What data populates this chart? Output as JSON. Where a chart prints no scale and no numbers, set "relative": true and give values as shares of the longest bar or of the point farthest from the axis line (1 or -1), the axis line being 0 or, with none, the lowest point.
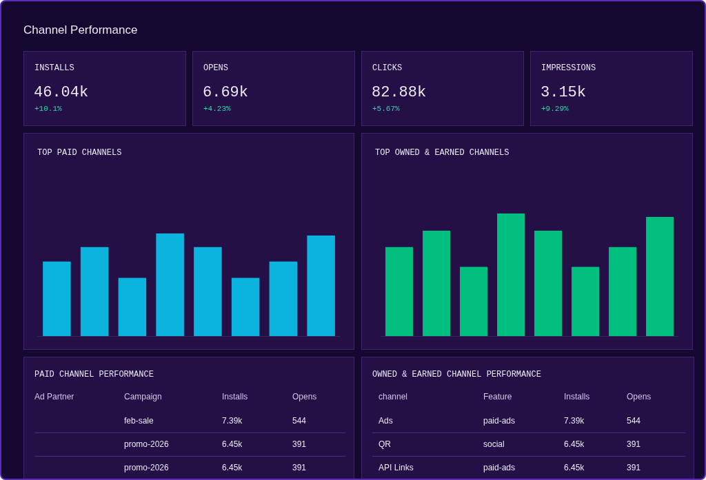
{
  "chart_data": [
    {
      "type": "other",
      "title": "Channel Performance",
      "categories": [
        "INSTALLS",
        "OPENS",
        "CLICKS",
        "IMPRESSIONS"
      ],
      "value_labels": [
        "46.04k",
        "6.69k",
        "82.88k",
        "3.15k"
      ],
      "annotations": [
        "+10.1%",
        "+4.23%",
        "+5.67%",
        "+9.29%"
      ]
    },
    {
      "type": "bar",
      "title": "TOP PAID CHANNELS",
      "categories": [
        null,
        null,
        null,
        null,
        null,
        null,
        null,
        null
      ],
      "values": [
        0.727,
        0.867,
        0.567,
        1,
        0.867,
        0.567,
        0.727,
        0.98
      ],
      "color": "#0ab4dc",
      "relative": true
    },
    {
      "type": "bar",
      "title": "TOP OWNED & EARNED CHANNELS",
      "categories": [
        null,
        null,
        null,
        null,
        null,
        null,
        null,
        null
      ],
      "values": [
        0.726,
        0.86,
        0.564,
        1,
        0.86,
        0.564,
        0.726,
        0.972
      ],
      "color": "#00bf7f",
      "relative": true
    },
    {
      "type": "other",
      "title": "PAID CHANNEL PERFORMANCE",
      "categories": [
        "Ad Partner",
        "Campaign",
        "Installs",
        "Opens"
      ],
      "cell_labels": [
        [
          null,
          "feb-sale",
          "7.39k",
          "544"
        ],
        [
          null,
          "promo-2026",
          "6.45k",
          "391"
        ],
        [
          null,
          "promo-2026",
          "6.45k",
          "391"
        ]
      ]
    },
    {
      "type": "other",
      "title": "OWNED & EARNED CHANNEL PERFORMANCE",
      "categories": [
        "channel",
        "Feature",
        "Installs",
        "Opens"
      ],
      "cell_labels": [
        [
          "Ads",
          "paid-ads",
          "7.39k",
          "544"
        ],
        [
          "QR",
          "social",
          "6.45k",
          "391"
        ],
        [
          "API Links",
          "paid-ads",
          "6.45k",
          "391"
        ]
      ]
    }
  ]
}
